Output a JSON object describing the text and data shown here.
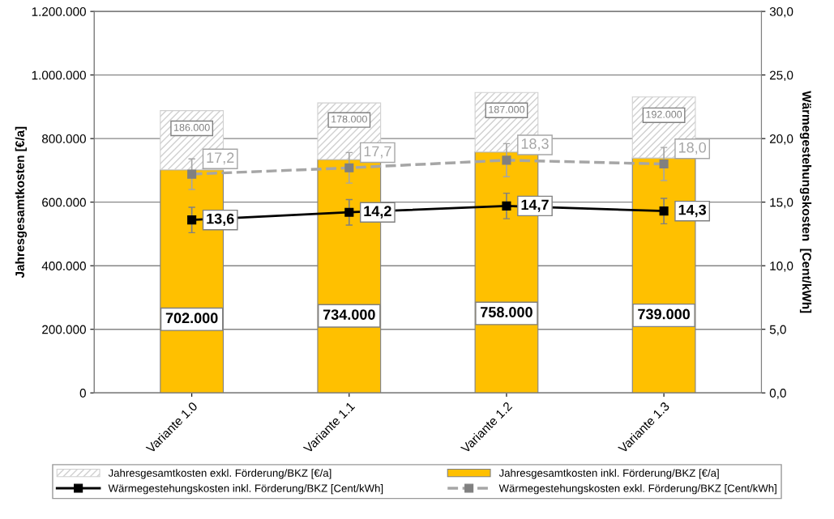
{
  "chart_data": {
    "type": "bar",
    "stacked": true,
    "ylabel": "Jahresgesamtkosten [€/a]",
    "y2label": "Wärmegestehungskosten  [Cent/kWh]",
    "categories": [
      "Variante 1.0",
      "Variante 1.1",
      "Variante 1.2",
      "Variante 1.3"
    ],
    "series": [
      {
        "name": "Jahresgesamtkosten inkl. Förderung/BKZ [€/a]",
        "color": "#ffc000",
        "values": [
          702000,
          734000,
          758000,
          739000
        ],
        "value_labels": [
          "702.000",
          "734.000",
          "758.000",
          "739.000"
        ]
      },
      {
        "name": "Jahresgesamtkosten exkl. Förderung/BKZ [€/a]",
        "color": "#d0d0d0",
        "values": [
          186000,
          178000,
          187000,
          192000
        ],
        "value_labels": [
          "186.000",
          "178.000",
          "187.000",
          "192.000"
        ]
      },
      {
        "name": "Wärmegestehungskosten inkl. Förderung/BKZ [Cent/kWh]",
        "type": "line",
        "axis": "y2",
        "color": "#000000",
        "marker": "square",
        "line_style": "solid",
        "values": [
          13.6,
          14.2,
          14.7,
          14.3
        ],
        "errors": [
          1.0,
          1.0,
          1.0,
          1.0
        ],
        "value_labels": [
          "13,6",
          "14,2",
          "14,7",
          "14,3"
        ]
      },
      {
        "name": "Wärmegestehungskosten exkl. Förderung/BKZ [Cent/kWh]",
        "type": "line",
        "axis": "y2",
        "color": "#a6a6a6",
        "marker": "square",
        "line_style": "dashed",
        "values": [
          17.2,
          17.7,
          18.3,
          18.0
        ],
        "errors": [
          1.2,
          1.2,
          1.3,
          1.3
        ],
        "value_labels": [
          "17,2",
          "17,7",
          "18,3",
          "18,0"
        ]
      }
    ],
    "ylim": [
      0,
      1200000
    ],
    "yticks": [
      0,
      {
        "value": 200000,
        "label": "200.000"
      },
      {
        "value": 400000,
        "label": "400.000"
      },
      {
        "value": 600000,
        "label": "600.000"
      },
      {
        "value": 800000,
        "label": "800.000"
      },
      {
        "value": 1000000,
        "label": "1.000.000"
      },
      {
        "value": 1200000,
        "label": "1.200.000"
      }
    ],
    "y2lim": [
      0,
      30
    ],
    "y2ticks": [
      {
        "value": 0,
        "label": "0,0"
      },
      {
        "value": 5,
        "label": "5,0"
      },
      {
        "value": 10,
        "label": "10,0"
      },
      {
        "value": 15,
        "label": "15,0"
      },
      {
        "value": 20,
        "label": "20,0"
      },
      {
        "value": 25,
        "label": "25,0"
      },
      {
        "value": 30,
        "label": "30,0"
      }
    ],
    "grid": "y",
    "legend": "bottom"
  }
}
